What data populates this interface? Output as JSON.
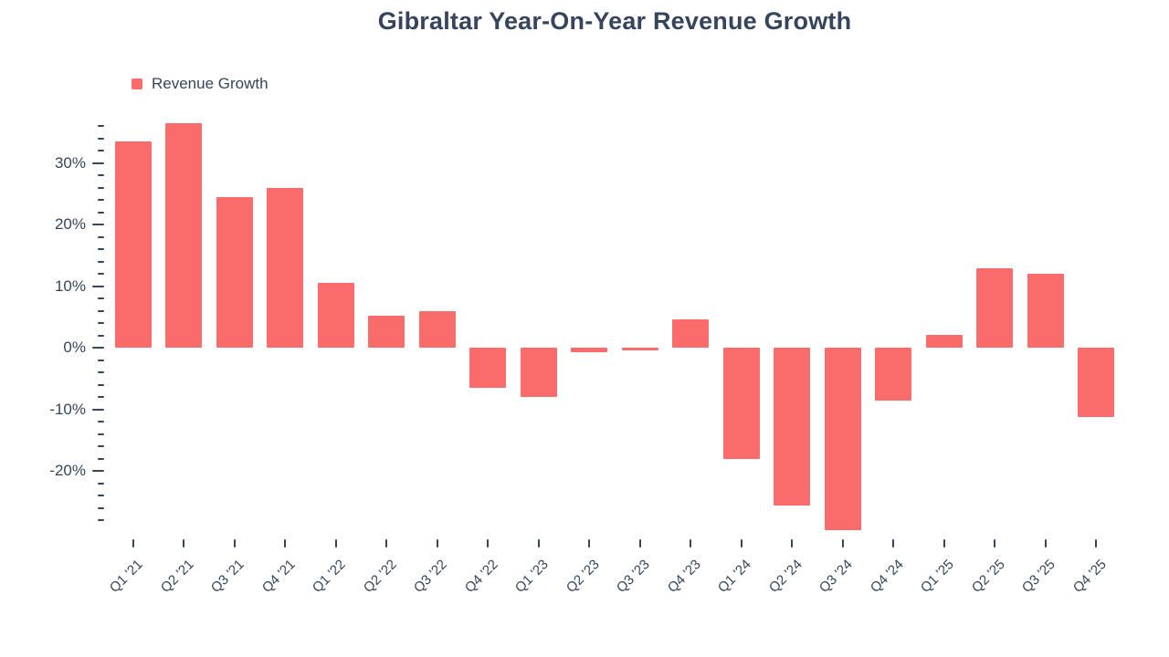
{
  "chart_data": {
    "type": "bar",
    "title": "Gibraltar Year-On-Year Revenue Growth",
    "legend": "Revenue Growth",
    "bar_color": "#fa6b6b",
    "text_color": "#36455b",
    "categories": [
      "Q1 '21",
      "Q2 '21",
      "Q3 '21",
      "Q4 '21",
      "Q1 '22",
      "Q2 '22",
      "Q3 '22",
      "Q4 '22",
      "Q1 '23",
      "Q2 '23",
      "Q3 '23",
      "Q4 '23",
      "Q1 '24",
      "Q2 '24",
      "Q3 '24",
      "Q4 '24",
      "Q1 '25",
      "Q2 '25",
      "Q3 '25",
      "Q4 '25"
    ],
    "values": [
      33.5,
      36.5,
      24.5,
      26.0,
      10.5,
      5.3,
      5.9,
      -6.5,
      -8.0,
      -0.7,
      -0.4,
      4.7,
      -18.0,
      -25.5,
      -29.5,
      -8.5,
      2.1,
      13.0,
      12.1,
      -11.2
    ],
    "unit": "%",
    "ylim": [
      -30,
      37.5
    ],
    "y_major_ticks": [
      30,
      20,
      10,
      0,
      -10,
      -20
    ],
    "y_major_tick_labels": [
      "30%",
      "20%",
      "10%",
      "0%",
      "-10%",
      "-20%"
    ],
    "y_minor_step": 2,
    "grid": "off",
    "legend_position": "top-left"
  }
}
